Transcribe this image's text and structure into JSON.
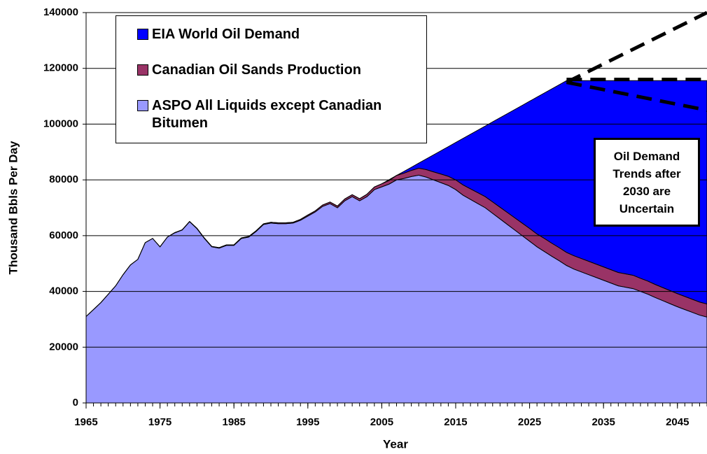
{
  "chart_data": {
    "type": "stacked_area",
    "xlabel": "Year",
    "ylabel": "Thousand Bbls Per Day",
    "annotation": "Oil Demand Trends after 2030 are Uncertain",
    "x": [
      1965,
      1966,
      1967,
      1968,
      1969,
      1970,
      1971,
      1972,
      1973,
      1974,
      1975,
      1976,
      1977,
      1978,
      1979,
      1980,
      1981,
      1982,
      1983,
      1984,
      1985,
      1986,
      1987,
      1988,
      1989,
      1990,
      1991,
      1992,
      1993,
      1994,
      1995,
      1996,
      1997,
      1998,
      1999,
      2000,
      2001,
      2002,
      2003,
      2004,
      2005,
      2006,
      2007,
      2008,
      2009,
      2010,
      2011,
      2012,
      2013,
      2014,
      2015,
      2016,
      2017,
      2018,
      2019,
      2020,
      2021,
      2022,
      2023,
      2024,
      2025,
      2026,
      2027,
      2028,
      2029,
      2030,
      2031,
      2032,
      2033,
      2034,
      2035,
      2036,
      2037,
      2038,
      2039,
      2040,
      2041,
      2042,
      2043,
      2044,
      2045,
      2046,
      2047,
      2048,
      2049
    ],
    "series": [
      {
        "name": "ASPO All Liquids except Canadian Bitumen",
        "color": "#9999ff",
        "values": [
          31000,
          33500,
          36000,
          39000,
          42000,
          46000,
          49500,
          51500,
          57500,
          59000,
          56000,
          59500,
          61000,
          62000,
          65000,
          62500,
          59000,
          56000,
          55500,
          56500,
          56500,
          59000,
          59500,
          61500,
          64000,
          64500,
          64300,
          64300,
          64500,
          65500,
          67000,
          68500,
          70500,
          71500,
          70000,
          72500,
          74000,
          72500,
          74000,
          76500,
          77500,
          78500,
          80000,
          80500,
          81200,
          81700,
          81000,
          80000,
          79000,
          78000,
          76500,
          74500,
          73000,
          71500,
          70000,
          68000,
          66000,
          64000,
          62000,
          60000,
          58000,
          56000,
          54300,
          52600,
          51000,
          49300,
          48000,
          47000,
          46000,
          45000,
          44000,
          43000,
          42000,
          41500,
          41000,
          40000,
          39000,
          37800,
          36700,
          35600,
          34500,
          33500,
          32500,
          31500,
          30800
        ]
      },
      {
        "name": "Canadian Oil Sands Production",
        "color": "#993366",
        "values": [
          0,
          0,
          0,
          0,
          0,
          0,
          0,
          0,
          0,
          0,
          0,
          0,
          100,
          100,
          100,
          150,
          150,
          150,
          200,
          200,
          200,
          200,
          200,
          250,
          250,
          300,
          300,
          300,
          300,
          350,
          400,
          400,
          500,
          550,
          600,
          650,
          700,
          750,
          850,
          950,
          1100,
          1300,
          1600,
          1900,
          2200,
          2500,
          2700,
          2900,
          3100,
          3300,
          3500,
          3700,
          3800,
          3900,
          4000,
          4100,
          4200,
          4300,
          4400,
          4500,
          4600,
          4600,
          4700,
          4700,
          4700,
          4700,
          4800,
          4800,
          4800,
          4800,
          4800,
          4800,
          4800,
          4800,
          4800,
          4700,
          4700,
          4700,
          4700,
          4700,
          4700,
          4700,
          4700,
          4700,
          4700
        ]
      },
      {
        "name": "EIA World Oil Demand",
        "color": "#0000ff",
        "values": [
          0,
          0,
          0,
          0,
          0,
          0,
          0,
          0,
          0,
          0,
          0,
          0,
          0,
          0,
          0,
          0,
          0,
          0,
          0,
          0,
          0,
          0,
          0,
          0,
          0,
          0,
          0,
          0,
          0,
          0,
          0,
          0,
          0,
          0,
          0,
          0,
          0,
          0,
          0,
          0,
          0,
          280,
          0,
          640,
          1120,
          1800,
          3780,
          6060,
          8340,
          10620,
          13400,
          16680,
          19560,
          22440,
          25320,
          28700,
          32080,
          35460,
          38840,
          42220,
          45600,
          49080,
          52160,
          55340,
          58420,
          61600,
          62800,
          63800,
          64800,
          65800,
          66800,
          67800,
          68800,
          69300,
          69800,
          70900,
          71900,
          73100,
          74200,
          75300,
          76400,
          77400,
          78400,
          79400,
          80100
        ]
      }
    ],
    "trend_lines": [
      {
        "x": [
          2030,
          2049
        ],
        "values": [
          115000,
          140000
        ]
      },
      {
        "x": [
          2030,
          2049
        ],
        "values": [
          116000,
          116000
        ]
      },
      {
        "x": [
          2030,
          2049
        ],
        "values": [
          115000,
          105000
        ]
      }
    ],
    "xlim": [
      1965,
      2049
    ],
    "xticks": [
      1965,
      1975,
      1985,
      1995,
      2005,
      2015,
      2025,
      2035,
      2045
    ],
    "ylim": [
      0,
      140000
    ],
    "yticks": [
      0,
      20000,
      40000,
      60000,
      80000,
      100000,
      120000,
      140000
    ],
    "grid": true
  }
}
